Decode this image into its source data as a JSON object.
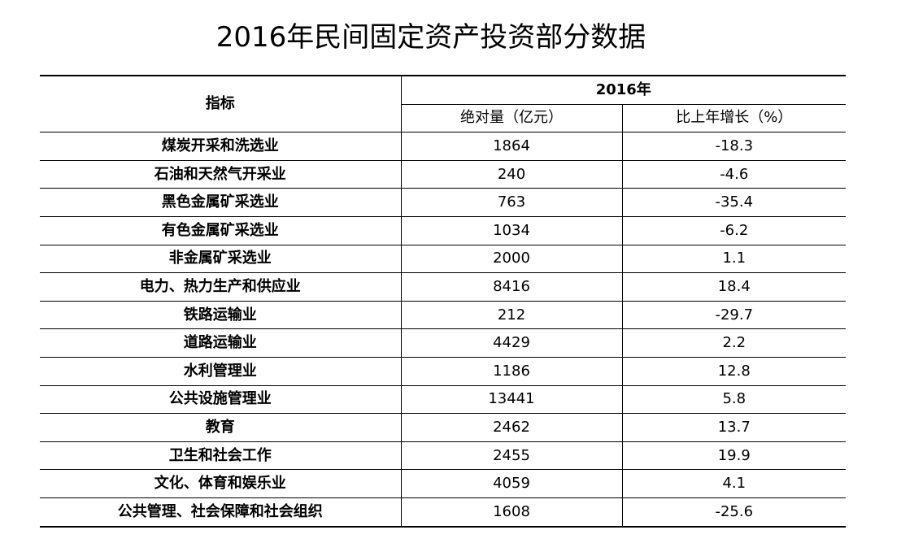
{
  "title": "2016年民间固定资产投资部分数据",
  "table": {
    "indicator_header": "指标",
    "year_header": "2016年",
    "col_absolute": "绝对量（亿元）",
    "col_growth": "比上年增长（%）",
    "rows": [
      {
        "label": "煤炭开采和洗选业",
        "absolute": "1864",
        "growth": "-18.3"
      },
      {
        "label": "石油和天然气开采业",
        "absolute": "240",
        "growth": "-4.6"
      },
      {
        "label": "黑色金属矿采选业",
        "absolute": "763",
        "growth": "-35.4"
      },
      {
        "label": "有色金属矿采选业",
        "absolute": "1034",
        "growth": "-6.2"
      },
      {
        "label": "非金属矿采选业",
        "absolute": "2000",
        "growth": "1.1"
      },
      {
        "label": "电力、热力生产和供应业",
        "absolute": "8416",
        "growth": "18.4"
      },
      {
        "label": "铁路运输业",
        "absolute": "212",
        "growth": "-29.7"
      },
      {
        "label": "道路运输业",
        "absolute": "4429",
        "growth": "2.2"
      },
      {
        "label": "水利管理业",
        "absolute": "1186",
        "growth": "12.8"
      },
      {
        "label": "公共设施管理业",
        "absolute": "13441",
        "growth": "5.8"
      },
      {
        "label": "教育",
        "absolute": "2462",
        "growth": "13.7"
      },
      {
        "label": "卫生和社会工作",
        "absolute": "2455",
        "growth": "19.9"
      },
      {
        "label": "文化、体育和娱乐业",
        "absolute": "4059",
        "growth": "4.1"
      },
      {
        "label": "公共管理、社会保障和社会组织",
        "absolute": "1608",
        "growth": "-25.6"
      }
    ]
  }
}
